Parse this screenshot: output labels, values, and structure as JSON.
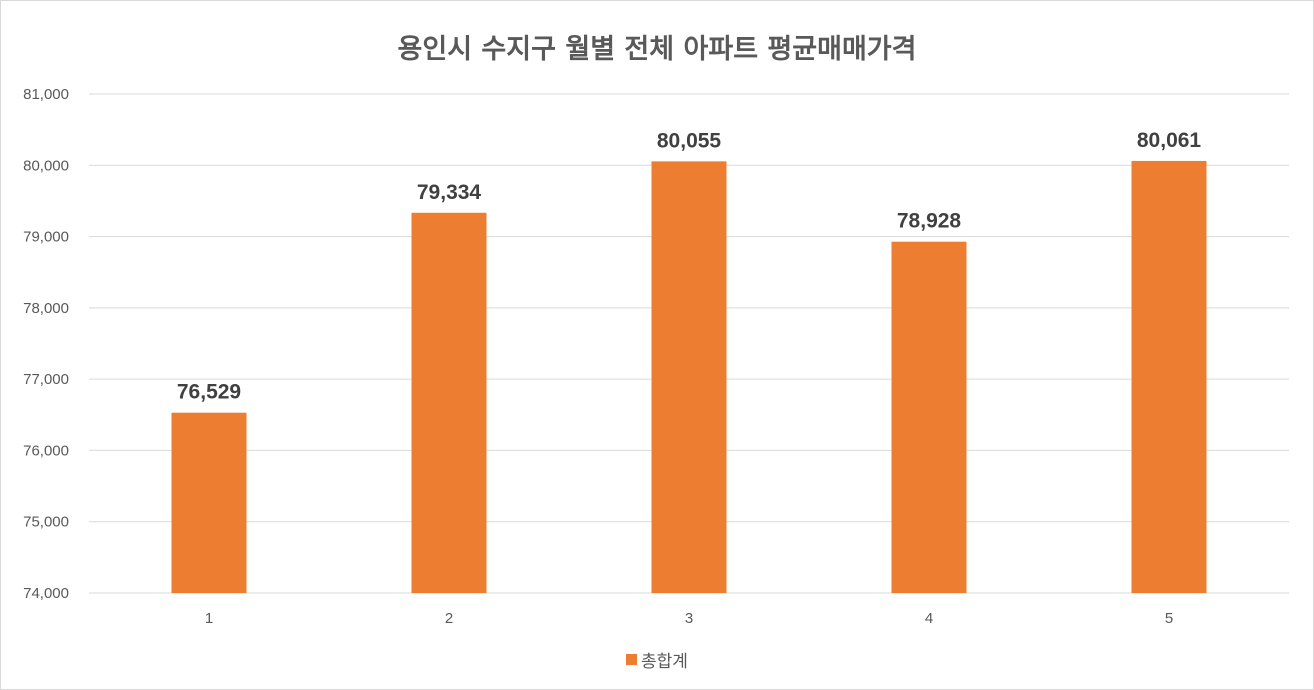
{
  "chart_data": {
    "type": "bar",
    "title": "용인시 수지구 월별 전체 아파트 평균매매가격",
    "categories": [
      "1",
      "2",
      "3",
      "4",
      "5"
    ],
    "series": [
      {
        "name": "총합계",
        "values": [
          76529,
          79334,
          80055,
          78928,
          80061
        ]
      }
    ],
    "value_labels": [
      "76,529",
      "79,334",
      "80,055",
      "78,928",
      "80,061"
    ],
    "ylim": [
      74000,
      81000
    ],
    "y_ticks": [
      74000,
      75000,
      76000,
      77000,
      78000,
      79000,
      80000,
      81000
    ],
    "y_tick_labels": [
      "74,000",
      "75,000",
      "76,000",
      "77,000",
      "78,000",
      "79,000",
      "80,000",
      "81,000"
    ],
    "grid": true,
    "legend": "bottom",
    "bar_color": "#ED7D31",
    "grid_color": "#d9d9d9"
  }
}
